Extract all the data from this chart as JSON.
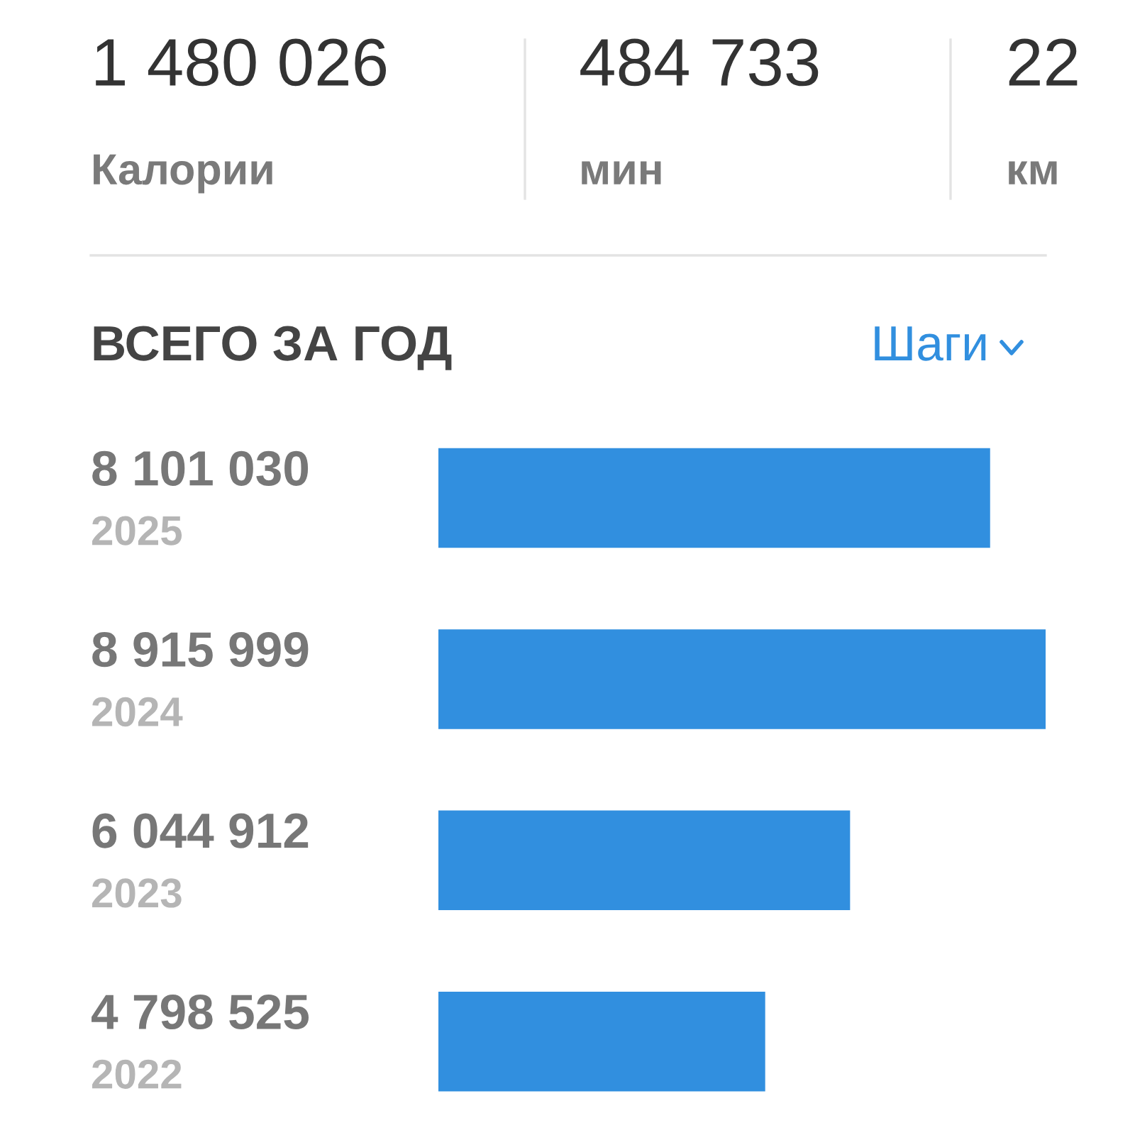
{
  "chart_data": {
    "type": "bar",
    "orientation": "horizontal",
    "title": "ВСЕГО ЗА ГОД",
    "subtitle": "Шаги",
    "categories": [
      "2025",
      "2024",
      "2023",
      "2022"
    ],
    "values": [
      8101030,
      8915999,
      6044912,
      4798525
    ],
    "value_labels": [
      "8 101 030",
      "8 915 999",
      "6 044 912",
      "4 798 525"
    ],
    "color": "#318fdf",
    "annotations": [
      "1 480 026",
      "Калории",
      "484 733",
      "мин",
      "22",
      "км"
    ]
  }
}
